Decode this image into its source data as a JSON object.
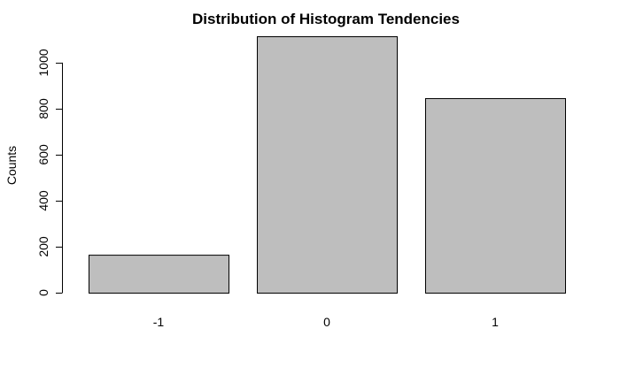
{
  "chart_data": {
    "type": "bar",
    "title": "Distribution of Histogram Tendencies",
    "xlabel": "",
    "ylabel": "Counts",
    "categories": [
      "-1",
      "0",
      "1"
    ],
    "values": [
      165,
      1115,
      846
    ],
    "ylim": [
      0,
      1115
    ],
    "yticks": [
      0,
      200,
      400,
      600,
      800,
      1000
    ],
    "grid": false,
    "bar_color": "#bebebe",
    "edge_color": "#000000"
  }
}
